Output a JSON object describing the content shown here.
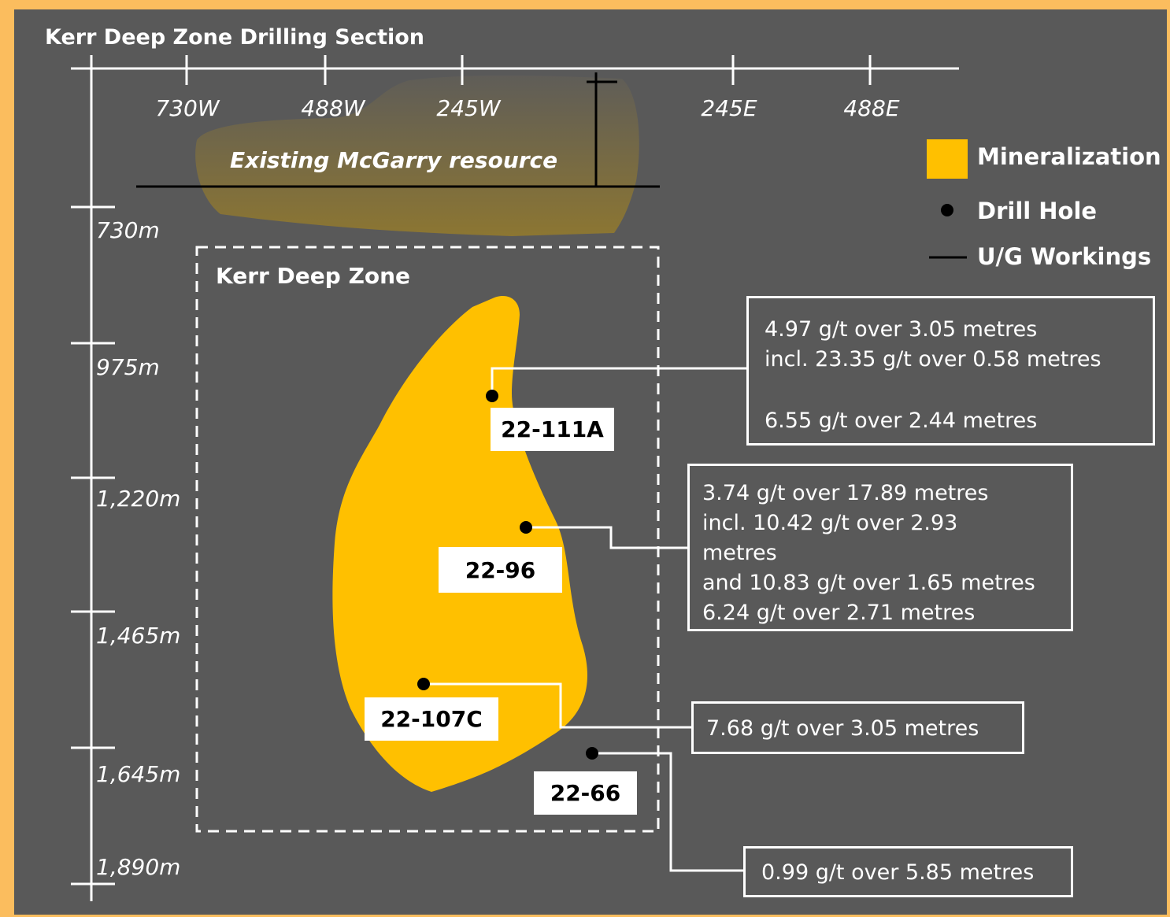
{
  "title": "Kerr Deep Zone Drilling Section",
  "x_axis": {
    "labels": [
      "730W",
      "488W",
      "245W",
      "245E",
      "488E"
    ]
  },
  "y_axis": {
    "labels": [
      "730m",
      "975m",
      "1,220m",
      "1,465m",
      "1,645m",
      "1,890m"
    ]
  },
  "legend": [
    {
      "label": "Mineralization"
    },
    {
      "label": "Drill Hole"
    },
    {
      "label": "U/G Workings"
    }
  ],
  "resource_label": "Existing McGarry resource",
  "zone_label": "Kerr Deep Zone",
  "drill_holes": [
    {
      "label": "22-111A",
      "results": [
        "4.97 g/t over 3.05 metres",
        "incl. 23.35 g/t over 0.58 metres",
        "6.55 g/t over 2.44 metres"
      ]
    },
    {
      "label": "22-96",
      "results": [
        "3.74 g/t over 17.89 metres",
        "incl. 10.42 g/t over 2.93 metres",
        "and 10.83 g/t over 1.65 metres",
        "6.24 g/t over 2.71 metres"
      ]
    },
    {
      "label": "22-107C",
      "results": [
        "7.68 g/t over 3.05 metres"
      ]
    },
    {
      "label": "22-66",
      "results": [
        "0.99 g/t over 5.85 metres"
      ]
    }
  ]
}
